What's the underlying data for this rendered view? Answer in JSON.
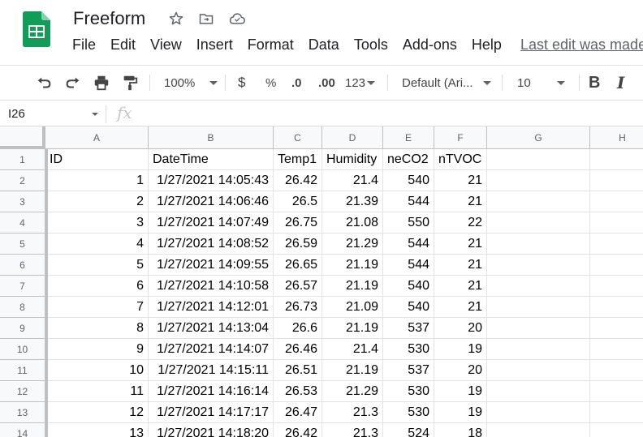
{
  "app": {
    "title": "Freeform",
    "last_edit": "Last edit was made"
  },
  "menu": [
    "File",
    "Edit",
    "View",
    "Insert",
    "Format",
    "Data",
    "Tools",
    "Add-ons",
    "Help"
  ],
  "toolbar": {
    "zoom": "100%",
    "currency": "$",
    "percent": "%",
    "decrease_decimal": ".0",
    "increase_decimal": ".00",
    "more_formats": "123",
    "font": "Default (Ari...",
    "font_size": "10",
    "bold": "B",
    "italic": "I"
  },
  "formula_bar": {
    "cell_ref": "I26",
    "fx": "fx"
  },
  "columns": [
    "A",
    "B",
    "C",
    "D",
    "E",
    "F",
    "G",
    "H"
  ],
  "row_numbers": [
    "1",
    "2",
    "3",
    "4",
    "5",
    "6",
    "7",
    "8",
    "9",
    "10",
    "11",
    "12",
    "13",
    "14"
  ],
  "rows": [
    [
      "ID",
      "DateTime",
      "Temp1",
      "Humidity",
      "neCO2",
      "nTVOC"
    ],
    [
      "1",
      "1/27/2021 14:05:43",
      "26.42",
      "21.4",
      "540",
      "21"
    ],
    [
      "2",
      "1/27/2021 14:06:46",
      "26.5",
      "21.39",
      "544",
      "21"
    ],
    [
      "3",
      "1/27/2021 14:07:49",
      "26.75",
      "21.08",
      "550",
      "22"
    ],
    [
      "4",
      "1/27/2021 14:08:52",
      "26.59",
      "21.29",
      "544",
      "21"
    ],
    [
      "5",
      "1/27/2021 14:09:55",
      "26.65",
      "21.19",
      "544",
      "21"
    ],
    [
      "6",
      "1/27/2021 14:10:58",
      "26.57",
      "21.19",
      "540",
      "21"
    ],
    [
      "7",
      "1/27/2021 14:12:01",
      "26.73",
      "21.09",
      "540",
      "21"
    ],
    [
      "8",
      "1/27/2021 14:13:04",
      "26.6",
      "21.19",
      "537",
      "20"
    ],
    [
      "9",
      "1/27/2021 14:14:07",
      "26.46",
      "21.4",
      "530",
      "19"
    ],
    [
      "10",
      "1/27/2021 14:15:11",
      "26.51",
      "21.19",
      "537",
      "20"
    ],
    [
      "11",
      "1/27/2021 14:16:14",
      "26.53",
      "21.29",
      "530",
      "19"
    ],
    [
      "12",
      "1/27/2021 14:17:17",
      "26.47",
      "21.3",
      "530",
      "19"
    ],
    [
      "13",
      "1/27/2021 14:18:20",
      "26.42",
      "21.3",
      "524",
      "18"
    ]
  ],
  "icons": {
    "star": "star-icon",
    "move": "move-to-folder-icon",
    "cloud": "cloud-status-icon",
    "undo": "undo-icon",
    "redo": "redo-icon",
    "print": "print-icon",
    "paint": "paint-format-icon"
  },
  "colors": {
    "brand_green": "#0f9d58",
    "header_bg": "#f8f9fa",
    "grid_line": "#e2e3e3"
  }
}
